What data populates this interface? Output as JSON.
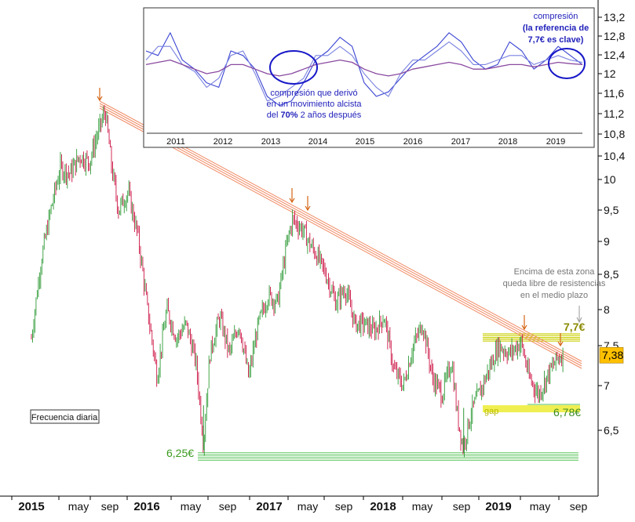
{
  "chart_data": [
    {
      "type": "candlestick",
      "name_shown": "",
      "frequency_label": "Frecuencia diaria",
      "y_axis": {
        "ticks": [
          "6,5",
          "7",
          "7,5",
          "8",
          "8,5",
          "9",
          "9,5",
          "10",
          "10,4",
          "10,8",
          "11,2",
          "11,6",
          "12",
          "12,4",
          "12,8",
          "13,2"
        ],
        "tick_values": [
          6.5,
          7,
          7.5,
          8,
          8.5,
          9,
          9.5,
          10,
          10.4,
          10.8,
          11.2,
          11.6,
          12,
          12.4,
          12.8,
          13.2
        ],
        "last_price_label": "7,38",
        "last_price": 7.38,
        "range": [
          6.0,
          13.3
        ],
        "position": "right"
      },
      "x_axis": {
        "labels": [
          {
            "text": "2015",
            "bold": true
          },
          {
            "text": "may",
            "bold": false
          },
          {
            "text": "sep",
            "bold": false
          },
          {
            "text": "2016",
            "bold": true
          },
          {
            "text": "may",
            "bold": false
          },
          {
            "text": "sep",
            "bold": false
          },
          {
            "text": "2017",
            "bold": true
          },
          {
            "text": "may",
            "bold": false
          },
          {
            "text": "sep",
            "bold": false
          },
          {
            "text": "2018",
            "bold": true
          },
          {
            "text": "may",
            "bold": false
          },
          {
            "text": "sep",
            "bold": false
          },
          {
            "text": "2019",
            "bold": true
          },
          {
            "text": "may",
            "bold": false
          },
          {
            "text": "sep",
            "bold": false
          }
        ],
        "range": [
          "2015-01",
          "2019-10"
        ]
      },
      "price_path": [
        [
          "2015-01-01",
          7.6
        ],
        [
          "2015-02-01",
          8.7
        ],
        [
          "2015-03-01",
          9.5
        ],
        [
          "2015-04-01",
          10.2
        ],
        [
          "2015-05-01",
          10.1
        ],
        [
          "2015-06-01",
          10.4
        ],
        [
          "2015-07-01",
          10.3
        ],
        [
          "2015-08-01",
          10.9
        ],
        [
          "2015-08-20",
          11.25
        ],
        [
          "2015-09-10",
          10.2
        ],
        [
          "2015-10-01",
          9.5
        ],
        [
          "2015-11-01",
          9.8
        ],
        [
          "2015-12-01",
          9.1
        ],
        [
          "2016-01-01",
          8.0
        ],
        [
          "2016-02-01",
          7.1
        ],
        [
          "2016-03-01",
          8.0
        ],
        [
          "2016-04-01",
          7.6
        ],
        [
          "2016-05-01",
          7.8
        ],
        [
          "2016-06-01",
          7.3
        ],
        [
          "2016-06-25",
          6.35
        ],
        [
          "2016-07-15",
          7.4
        ],
        [
          "2016-08-15",
          7.9
        ],
        [
          "2016-09-15",
          7.4
        ],
        [
          "2016-10-15",
          7.8
        ],
        [
          "2016-11-15",
          7.1
        ],
        [
          "2016-12-15",
          7.8
        ],
        [
          "2017-01-15",
          8.2
        ],
        [
          "2017-02-15",
          8.1
        ],
        [
          "2017-03-15",
          9.0
        ],
        [
          "2017-04-01",
          9.35
        ],
        [
          "2017-05-01",
          9.2
        ],
        [
          "2017-05-20",
          9.0
        ],
        [
          "2017-06-15",
          8.8
        ],
        [
          "2017-07-15",
          8.5
        ],
        [
          "2017-08-15",
          8.1
        ],
        [
          "2017-09-15",
          8.3
        ],
        [
          "2017-10-15",
          7.8
        ],
        [
          "2017-11-15",
          7.8
        ],
        [
          "2017-12-15",
          7.7
        ],
        [
          "2018-01-15",
          7.9
        ],
        [
          "2018-02-15",
          7.2
        ],
        [
          "2018-03-15",
          7.0
        ],
        [
          "2018-04-15",
          7.5
        ],
        [
          "2018-05-15",
          7.8
        ],
        [
          "2018-06-15",
          7.1
        ],
        [
          "2018-07-15",
          6.9
        ],
        [
          "2018-08-15",
          7.3
        ],
        [
          "2018-09-01",
          6.7
        ],
        [
          "2018-09-20",
          6.3
        ],
        [
          "2018-10-15",
          6.7
        ],
        [
          "2018-11-15",
          6.95
        ],
        [
          "2018-12-10",
          7.2
        ],
        [
          "2019-01-10",
          7.5
        ],
        [
          "2019-02-15",
          7.4
        ],
        [
          "2019-03-20",
          7.55
        ],
        [
          "2019-04-15",
          7.1
        ],
        [
          "2019-05-15",
          6.9
        ],
        [
          "2019-06-15",
          7.15
        ],
        [
          "2019-07-15",
          7.35
        ],
        [
          "2019-08-01",
          7.38
        ]
      ],
      "annotations": {
        "trendline": "resistencia bajista desde 2015",
        "resistance_label": "7,7€",
        "resistance_level": 7.7,
        "above_zone_note": "Encima de esta zona queda libre de resistencias en el medio plazo",
        "gap_label": "gap",
        "gap_level_label": "6,78€",
        "gap_level": 6.78,
        "support_label": "6,25€",
        "support_level": 6.25
      },
      "colors": {
        "up": "#2e9a36",
        "down": "#cc1444",
        "trendline": "#f08a64",
        "resistance": "#ccd10a",
        "gap": "#ecec34",
        "support": "#52c052",
        "last_price_bg": "#ffc000",
        "arrow": "#d46414"
      }
    },
    {
      "type": "line",
      "name_shown": "",
      "inset": true,
      "x_labels": [
        "2011",
        "2012",
        "2013",
        "2014",
        "2015",
        "2016",
        "2017",
        "2018",
        "2019"
      ],
      "series": [
        {
          "name": "",
          "color": "#3a44d2",
          "values": [
            0.5,
            0.4,
            0.9,
            0.3,
            0.1,
            -0.2,
            -0.3,
            0.5,
            0.4,
            0.1,
            -0.5,
            -0.7,
            -0.6,
            -0.2,
            0.3,
            0.5,
            0.8,
            0.6,
            -0.2,
            -0.5,
            -0.4,
            -0.1,
            0.2,
            0.4,
            0.6,
            0.9,
            0.7,
            0.3,
            0.1,
            0.2,
            0.7,
            0.5,
            0.1,
            0.3,
            0.6,
            0.4,
            0.2
          ]
        },
        {
          "name": "",
          "color": "#7a82e0",
          "values": [
            0.3,
            0.6,
            0.6,
            0.2,
            0.05,
            -0.3,
            -0.1,
            0.4,
            0.5,
            0.0,
            -0.6,
            -0.5,
            -0.3,
            -0.1,
            0.4,
            0.4,
            0.6,
            0.4,
            0.0,
            -0.3,
            -0.5,
            0.0,
            0.3,
            0.3,
            0.5,
            0.7,
            0.5,
            0.2,
            0.2,
            0.3,
            0.4,
            0.4,
            0.2,
            0.3,
            0.4,
            0.3,
            0.25
          ]
        },
        {
          "name": "",
          "color": "#8a4aa0",
          "values": [
            0.2,
            0.25,
            0.3,
            0.2,
            0.1,
            0.0,
            0.05,
            0.2,
            0.2,
            0.1,
            0.0,
            -0.05,
            0.0,
            0.1,
            0.2,
            0.25,
            0.3,
            0.25,
            0.1,
            0.0,
            -0.05,
            0.0,
            0.1,
            0.15,
            0.2,
            0.25,
            0.2,
            0.1,
            0.1,
            0.15,
            0.2,
            0.2,
            0.15,
            0.2,
            0.25,
            0.22,
            0.2
          ]
        }
      ],
      "notes": {
        "compression_left": [
          "compresión que derivó",
          "en un movimiento alcista",
          "del ",
          "70%",
          " 2 años después"
        ],
        "compression_right": [
          "compresión",
          "(la referencia de",
          "7,7€ es clave)"
        ]
      }
    }
  ]
}
